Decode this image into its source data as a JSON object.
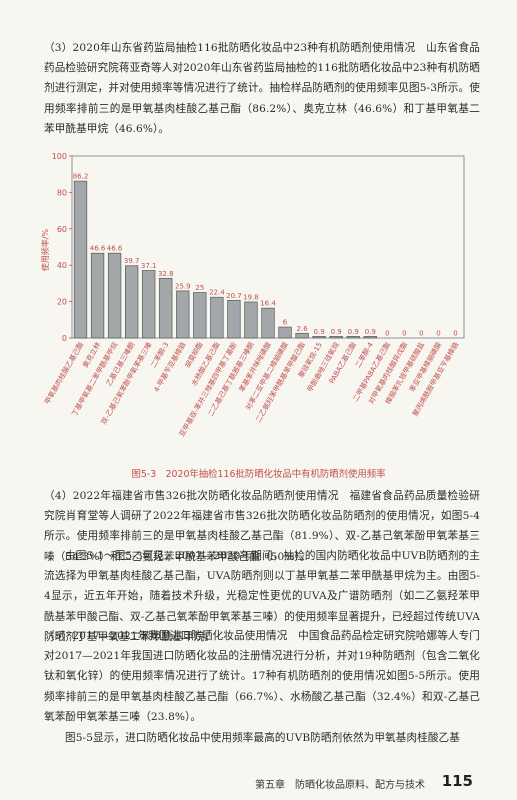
{
  "paragraphs": [
    "（3）2020年山东省药监局抽检116批防晒化妆品中23种有机防晒剂使用情况　山东省食品药品检验研究院蒋亚奇等人对2020年山东省药监局抽检的116批防晒化妆品中23种有机防晒剂进行测定，并对使用频率等情况进行了统计。抽检样品防晒剂的使用频率见图5-3所示。使用频率排前三的是甲氧基肉桂酸乙基己酯（86.2%）、奥克立林（46.6%）和丁基甲氧基二苯甲酰基甲烷（46.6%）。",
    "（4）2022年福建省市售326批次防晒化妆品防晒剂使用情况　福建省食品药品质量检验研究院肖育堂等人调研了2022年福建省市售326批次防晒化妆品防晒剂的使用情况，如图5-4所示。使用频率排前三的是甲氧基肉桂酸乙基己酯（81.9%）、双-乙基己氧苯酚甲氧苯基三嗪（54.3%）和二乙氨羟苯甲酰基苯甲酸己酯（50%）。",
    "由图5-1～图5-3可见，2007—2020年期间，抽检的国内防晒化妆品中UVB防晒剂的主流选择为甲氧基肉桂酸乙基己酯，UVA防晒剂则以丁基甲氧基二苯甲酰基甲烷为主。由图5-4显示，近五年开始，随着技术升级，光稳定性更优的UVA及广谱防晒剂（如二乙氨羟苯甲酰基苯甲酸己酯、双-乙基己氧苯酚甲氧苯基三嗪）的使用频率显著提升，已经超过传统UVA防晒剂丁基甲氧基二苯甲酰基甲烷。",
    "（5）2017—2021年我国进口防晒化妆品使用情况　中国食品药品检定研究院哈娜等人专门对2017—2021年我国进口防晒化妆品的注册情况进行分析，并对19种防晒剂（包含二氧化钛和氧化锌）的使用频率情况进行了统计。17种有机防晒剂的使用情况如图5-5所示。使用频率排前三的是甲氧基肉桂酸乙基己酯（66.7%）、水杨酸乙基己酯（32.4%）和双-乙基己氧苯酚甲氧苯基三嗪（23.8%）。",
    "图5-5显示，进口防晒化妆品中使用频率最高的UVB防晒剂依然为甲氧基肉桂酸乙基"
  ],
  "chart_data": {
    "type": "bar",
    "ylabel": "使用频率/%",
    "ylim": [
      0,
      100
    ],
    "yticks": [
      0,
      20,
      40,
      60,
      80,
      100
    ],
    "categories": [
      "甲氧基肉桂酸乙基己酯",
      "奥克立林",
      "丁基甲氧基二苯甲酰基甲烷",
      "乙基己基三嗪酮",
      "双-乙基己氧苯酚甲氧苯基三嗪",
      "二苯酮-3",
      "4-甲基苄亚基樟脑",
      "胡莫柳酯",
      "水杨酸乙基己酯",
      "亚甲基双-苯并三唑基四甲基丁基酚",
      "二乙基己基丁酰胺基三嗪酮",
      "苯基苯并咪唑磺酸",
      "对苯二亚甲基二樟脑磺酸",
      "二乙氨羟苯甲酰基苯甲酸己酯",
      "聚硅氧烷-15",
      "甲酚曲唑三硅氧烷",
      "PABA乙基己酯",
      "二苯酮-4",
      "二甲基PABA乙基己酯",
      "对甲氧基肉桂酸异戊酯",
      "樟脑苯扎铵甲基硫酸盐",
      "苯亚甲基樟脑磺酸",
      "聚丙烯酰胺甲基亚苄基樟脑"
    ],
    "values": [
      86.2,
      46.6,
      46.6,
      39.7,
      37.1,
      32.8,
      25.9,
      25,
      22.4,
      20.7,
      19.8,
      16.4,
      6,
      2.6,
      0.9,
      0.9,
      0.9,
      0.9,
      0,
      0,
      0,
      0,
      0
    ],
    "value_labels": [
      "86.2",
      "46.6",
      "46.6",
      "39.7",
      "37.1",
      "32.8",
      "25.9",
      "25",
      "22.4",
      "20.7",
      "19.8",
      "16.4",
      "6",
      "2.6",
      "0.9",
      "0.9",
      "0.9",
      "0.9",
      "0",
      "0",
      "0",
      "0",
      "0"
    ],
    "colors": {
      "bar": "#a3a7aa",
      "bar_edge": "#55595c",
      "axis": "#c0504d",
      "label": "#c0504d"
    }
  },
  "caption": "图5-3　2020年抽检116批防晒化妆品中有机防晒剂使用频率",
  "footer": {
    "chapter": "第五章　防晒化妆品原料、配方与技术",
    "page": "115"
  }
}
